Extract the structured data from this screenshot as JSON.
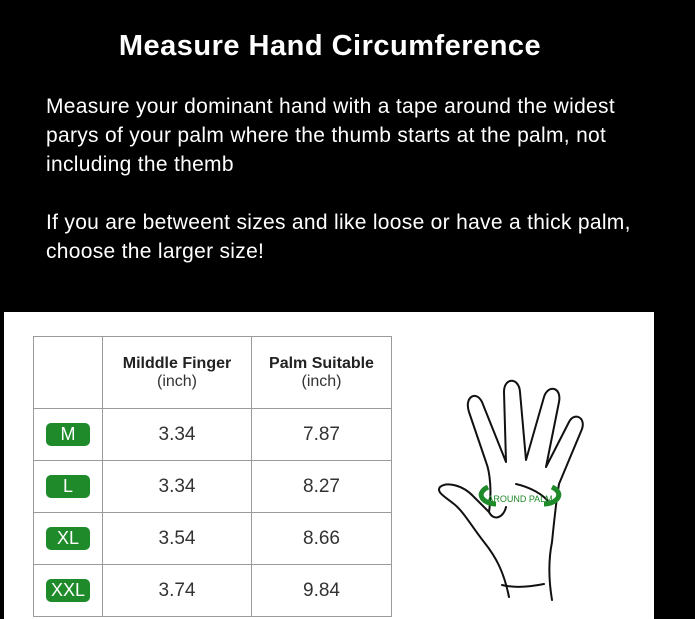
{
  "title": "Measure Hand Circumference",
  "instructions": [
    "Measure your dominant hand  with a tape around the widest parys of your palm where the thumb starts at the palm, not including the themb",
    "If you are betweent sizes and like loose or have a thick palm, choose the larger size!"
  ],
  "table": {
    "headers": [
      {
        "title": "Milddle Finger",
        "unit": "(inch)"
      },
      {
        "title": "Palm Suitable",
        "unit": "(inch)"
      }
    ],
    "rows": [
      {
        "size": "M",
        "finger": "3.34",
        "palm": "7.87"
      },
      {
        "size": "L",
        "finger": "3.34",
        "palm": "8.27"
      },
      {
        "size": "XL",
        "finger": "3.54",
        "palm": "8.66"
      },
      {
        "size": "XXL",
        "finger": "3.74",
        "palm": "9.84"
      }
    ]
  },
  "illustration": {
    "label": "AROUND PALM",
    "accent": "#1f8a2a"
  }
}
